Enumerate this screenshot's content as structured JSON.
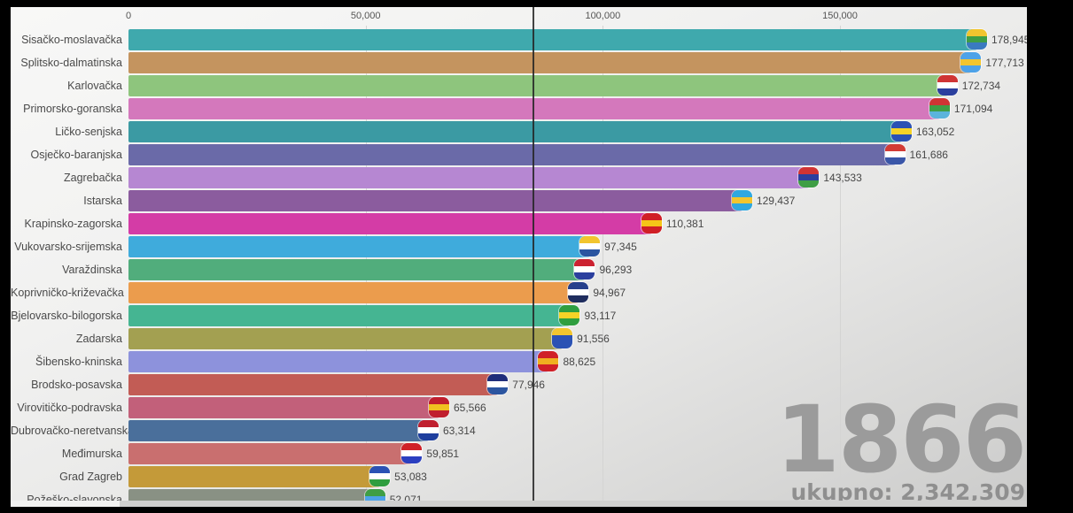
{
  "axis": {
    "ticks": [
      {
        "label": "0",
        "value": 0
      },
      {
        "label": "50,000",
        "value": 50000
      },
      {
        "label": "100,000",
        "value": 100000
      },
      {
        "label": "150,000",
        "value": 150000
      }
    ]
  },
  "overlay": {
    "year": "1866",
    "total": "ukupno: 2,342,309"
  },
  "chart_data": {
    "type": "bar",
    "orientation": "horizontal",
    "title": "",
    "xlabel": "",
    "ylabel": "",
    "xlim": [
      0,
      190000
    ],
    "grid": true,
    "categories": [
      "Sisačko-moslavačka",
      "Splitsko-dalmatinska",
      "Karlovačka",
      "Primorsko-goranska",
      "Ličko-senjska",
      "Osječko-baranjska",
      "Zagrebačka",
      "Istarska",
      "Krapinsko-zagorska",
      "Vukovarsko-srijemska",
      "Varaždinska",
      "Koprivničko-križevačka",
      "Bjelovarsko-bilogorska",
      "Zadarska",
      "Šibensko-kninska",
      "Brodsko-posavska",
      "Virovitičko-podravska",
      "Dubrovačko-neretvanska",
      "Međimurska",
      "Grad Zagreb",
      "Požeško-slavonska"
    ],
    "values": [
      178945,
      177713,
      172734,
      171094,
      163052,
      161686,
      143533,
      129437,
      110381,
      97345,
      96293,
      94967,
      93117,
      91556,
      88625,
      77946,
      65566,
      63314,
      59851,
      53083,
      52071
    ],
    "value_labels": [
      "178,945",
      "177,713",
      "172,734",
      "171,094",
      "163,052",
      "161,686",
      "143,533",
      "129,437",
      "110,381",
      "97,345",
      "96,293",
      "94,967",
      "93,117",
      "91,556",
      "88,625",
      "77,946",
      "65,566",
      "63,314",
      "59,851",
      "53,083",
      "52,071"
    ],
    "bar_colors": [
      "#3fa9ad",
      "#c4945f",
      "#8ec57d",
      "#d478bc",
      "#3b9aa3",
      "#6a6aa8",
      "#b687d2",
      "#8b5c9e",
      "#d43ca6",
      "#3fabdc",
      "#51ad7c",
      "#eb9c4d",
      "#45b592",
      "#a3a051",
      "#8d92dc",
      "#c25c55",
      "#c2607a",
      "#4a6f9b",
      "#c96f6f",
      "#c49a39",
      "#899184"
    ],
    "icon_colors": [
      [
        "#f2c52e",
        "#3f9e45",
        "#3a7ac0"
      ],
      [
        "#4da2e8",
        "#f2c52e",
        "#4da2e8"
      ],
      [
        "#d03434",
        "#ffffff",
        "#2b3f9e"
      ],
      [
        "#d03434",
        "#3f9e45",
        "#5bb4dc"
      ],
      [
        "#2b52b4",
        "#f5d327",
        "#2b52b4"
      ],
      [
        "#d23b35",
        "#ffffff",
        "#3a56a8"
      ],
      [
        "#d03434",
        "#2b3f9e",
        "#3f9e45"
      ],
      [
        "#2fa8e0",
        "#f2c52e",
        "#2fa8e0"
      ],
      [
        "#d01f26",
        "#f5c518",
        "#d01f26"
      ],
      [
        "#f2c52e",
        "#ffffff",
        "#2b55a0"
      ],
      [
        "#cc2231",
        "#ffffff",
        "#2b3f9e"
      ],
      [
        "#27418c",
        "#ffffff",
        "#1f2d5e"
      ],
      [
        "#2f9e3f",
        "#f5d327",
        "#2f9e3f"
      ],
      [
        "#f2c52e",
        "#2b52b4",
        "#2b52b4"
      ],
      [
        "#d02028",
        "#f0b020",
        "#d02028"
      ],
      [
        "#1f2d7a",
        "#ffffff",
        "#2b55a0"
      ],
      [
        "#c01f2e",
        "#f0c020",
        "#c01f2e"
      ],
      [
        "#c01f2e",
        "#ffffff",
        "#1f3f9e"
      ],
      [
        "#d02028",
        "#ffffff",
        "#2b3fc0"
      ],
      [
        "#2b52b4",
        "#ffffff",
        "#2f9e3f"
      ],
      [
        "#3f9e45",
        "#4da2e8",
        "#3f9e45"
      ]
    ],
    "legend": null,
    "marker_line_x_px": 589,
    "colors": {
      "grid": "#d4d4d3",
      "marker": "#232323",
      "year_text": "#9b9b9b"
    }
  }
}
